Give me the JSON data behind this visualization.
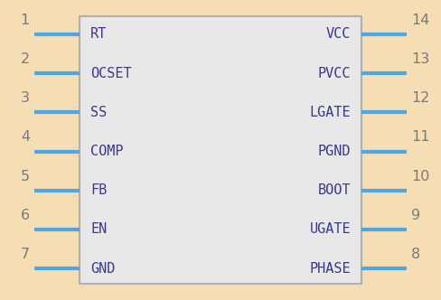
{
  "bg_color": "#f5deb3",
  "body_color": "#e8e8e8",
  "body_edge_color": "#b0b0b0",
  "pin_color": "#4da6e8",
  "pin_label_color": "#3a3a8c",
  "num_color": "#7a7a7a",
  "left_pins": [
    {
      "num": "1",
      "label": "RT"
    },
    {
      "num": "2",
      "label": "OCSET"
    },
    {
      "num": "3",
      "label": "SS"
    },
    {
      "num": "4",
      "label": "COMP"
    },
    {
      "num": "5",
      "label": "FB"
    },
    {
      "num": "6",
      "label": "EN"
    },
    {
      "num": "7",
      "label": "GND"
    }
  ],
  "right_pins": [
    {
      "num": "14",
      "label": "VCC"
    },
    {
      "num": "13",
      "label": "PVCC"
    },
    {
      "num": "12",
      "label": "LGATE"
    },
    {
      "num": "11",
      "label": "PGND"
    },
    {
      "num": "10",
      "label": "BOOT"
    },
    {
      "num": "9",
      "label": "UGATE"
    },
    {
      "num": "8",
      "label": "PHASE"
    }
  ],
  "fig_w": 4.88,
  "fig_h": 3.32,
  "dpi": 100,
  "font_size_label": 11.0,
  "font_size_num": 11.5
}
